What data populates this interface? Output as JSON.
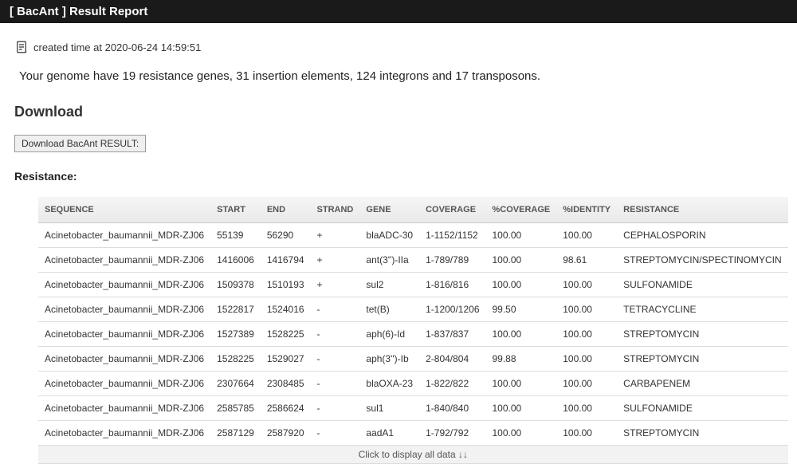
{
  "header": {
    "title": "[ BacAnt ] Result Report"
  },
  "timestamp": {
    "label": "created time at 2020-06-24 14:59:51"
  },
  "summary": {
    "text": "Your genome have 19 resistance genes, 31 insertion elements, 124 integrons and 17 transposons."
  },
  "download": {
    "heading": "Download",
    "button_label": "Download BacAnt RESULT:"
  },
  "resistance": {
    "heading": "Resistance:",
    "columns": [
      "SEQUENCE",
      "START",
      "END",
      "STRAND",
      "GENE",
      "COVERAGE",
      "%COVERAGE",
      "%IDENTITY",
      "RESISTANCE"
    ],
    "rows": [
      [
        "Acinetobacter_baumannii_MDR-ZJ06",
        "55139",
        "56290",
        "+",
        "blaADC-30",
        "1-1152/1152",
        "100.00",
        "100.00",
        "CEPHALOSPORIN"
      ],
      [
        "Acinetobacter_baumannii_MDR-ZJ06",
        "1416006",
        "1416794",
        "+",
        "ant(3'')-IIa",
        "1-789/789",
        "100.00",
        "98.61",
        "STREPTOMYCIN/SPECTINOMYCIN"
      ],
      [
        "Acinetobacter_baumannii_MDR-ZJ06",
        "1509378",
        "1510193",
        "+",
        "sul2",
        "1-816/816",
        "100.00",
        "100.00",
        "SULFONAMIDE"
      ],
      [
        "Acinetobacter_baumannii_MDR-ZJ06",
        "1522817",
        "1524016",
        "-",
        "tet(B)",
        "1-1200/1206",
        "99.50",
        "100.00",
        "TETRACYCLINE"
      ],
      [
        "Acinetobacter_baumannii_MDR-ZJ06",
        "1527389",
        "1528225",
        "-",
        "aph(6)-Id",
        "1-837/837",
        "100.00",
        "100.00",
        "STREPTOMYCIN"
      ],
      [
        "Acinetobacter_baumannii_MDR-ZJ06",
        "1528225",
        "1529027",
        "-",
        "aph(3'')-Ib",
        "2-804/804",
        "99.88",
        "100.00",
        "STREPTOMYCIN"
      ],
      [
        "Acinetobacter_baumannii_MDR-ZJ06",
        "2307664",
        "2308485",
        "-",
        "blaOXA-23",
        "1-822/822",
        "100.00",
        "100.00",
        "CARBAPENEM"
      ],
      [
        "Acinetobacter_baumannii_MDR-ZJ06",
        "2585785",
        "2586624",
        "-",
        "sul1",
        "1-840/840",
        "100.00",
        "100.00",
        "SULFONAMIDE"
      ],
      [
        "Acinetobacter_baumannii_MDR-ZJ06",
        "2587129",
        "2587920",
        "-",
        "aadA1",
        "1-792/792",
        "100.00",
        "100.00",
        "STREPTOMYCIN"
      ]
    ],
    "expand_label": "Click to display all data ↓↓"
  },
  "style": {
    "header_bg": "#1a1a1a",
    "header_fg": "#ffffff",
    "body_bg": "#ffffff",
    "text_color": "#333333",
    "thead_bg_top": "#f6f6f6",
    "thead_bg_bottom": "#e9e9e9",
    "row_border": "#dddddd",
    "expand_bg": "#f2f2f2",
    "button_bg": "#efefef",
    "button_border": "#999999"
  }
}
